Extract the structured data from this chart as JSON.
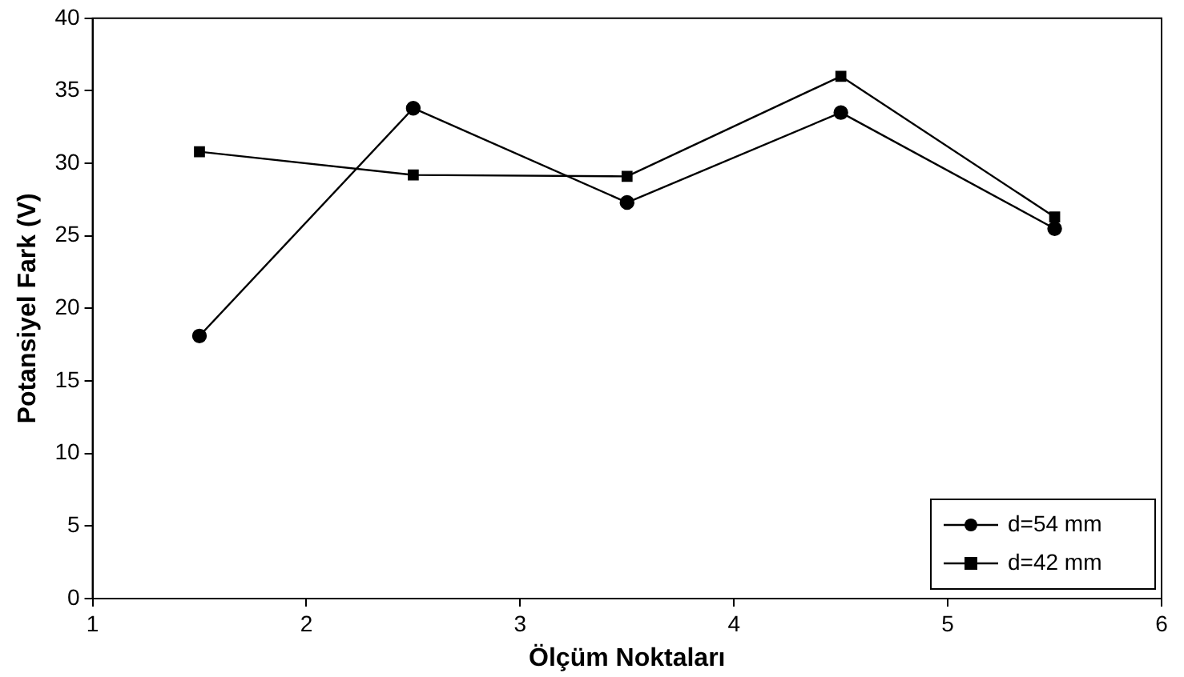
{
  "chart_data": {
    "type": "line",
    "xlabel": "Ölçüm Noktaları",
    "ylabel": "Potansiyel Fark (V)",
    "x": [
      1.5,
      2.5,
      3.5,
      4.5,
      5.5
    ],
    "series": [
      {
        "name": "d=54 mm",
        "color": "#000000",
        "marker": "circle",
        "values": [
          18.1,
          33.8,
          27.3,
          33.5,
          25.5
        ]
      },
      {
        "name": "d=42 mm",
        "color": "#000000",
        "marker": "square",
        "values": [
          30.8,
          29.2,
          29.1,
          36.0,
          26.3
        ]
      }
    ],
    "xlim": [
      1,
      6
    ],
    "xticks": [
      1,
      2,
      3,
      4,
      5,
      6
    ],
    "ylim": [
      0,
      40
    ],
    "yticks": [
      0,
      5,
      10,
      15,
      20,
      25,
      30,
      35,
      40
    ],
    "grid": false,
    "legend": "bottom right",
    "line_style": "solid"
  }
}
